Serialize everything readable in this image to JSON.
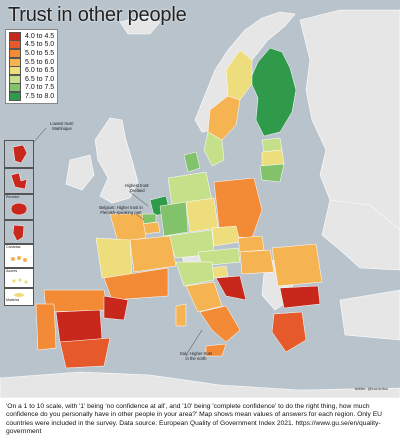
{
  "title": "Trust in other people",
  "legend": [
    {
      "label": "4.0 to 4.5",
      "color": "#c8271c"
    },
    {
      "label": "4.5 to 5.0",
      "color": "#e5592b"
    },
    {
      "label": "5.0 to 5.5",
      "color": "#f28a36"
    },
    {
      "label": "5.5 to 6.0",
      "color": "#f6b352"
    },
    {
      "label": "6.0 to 6.5",
      "color": "#eedd7c"
    },
    {
      "label": "6.5 to 7.0",
      "color": "#c6e08a"
    },
    {
      "label": "7.0 to 7.5",
      "color": "#82c26a"
    },
    {
      "label": "7.5 to 8.0",
      "color": "#2f9a4a"
    }
  ],
  "insets": [
    "Reunion",
    "Canarias",
    "Azores",
    "Madeira"
  ],
  "annotations": {
    "lowest": "Lowest trust:\nMartinique",
    "highest": "Highest trust:\nZeeland",
    "belgium": "Belgium: Higher trust in\nFlemish-speaking part",
    "italy": "Italy: Higher trust\nin the north"
  },
  "credit": "twitter: @euroinfoz",
  "footnote": "'On a 1 to 10 scale, with '1' being 'no confidence at all', and '10' being 'complete confidence' to do the right thing, how much confidence do you personally have in other people in your area?' Map shows mean values of answers for each region. Only EU countries were included in the survey. Data source: European Quality of Government Index 2021. https://www.gu.se/en/quality-government",
  "colors": {
    "sea": "#b8c3cc",
    "non_eu": "#e6e6e6",
    "border": "#ffffff"
  }
}
